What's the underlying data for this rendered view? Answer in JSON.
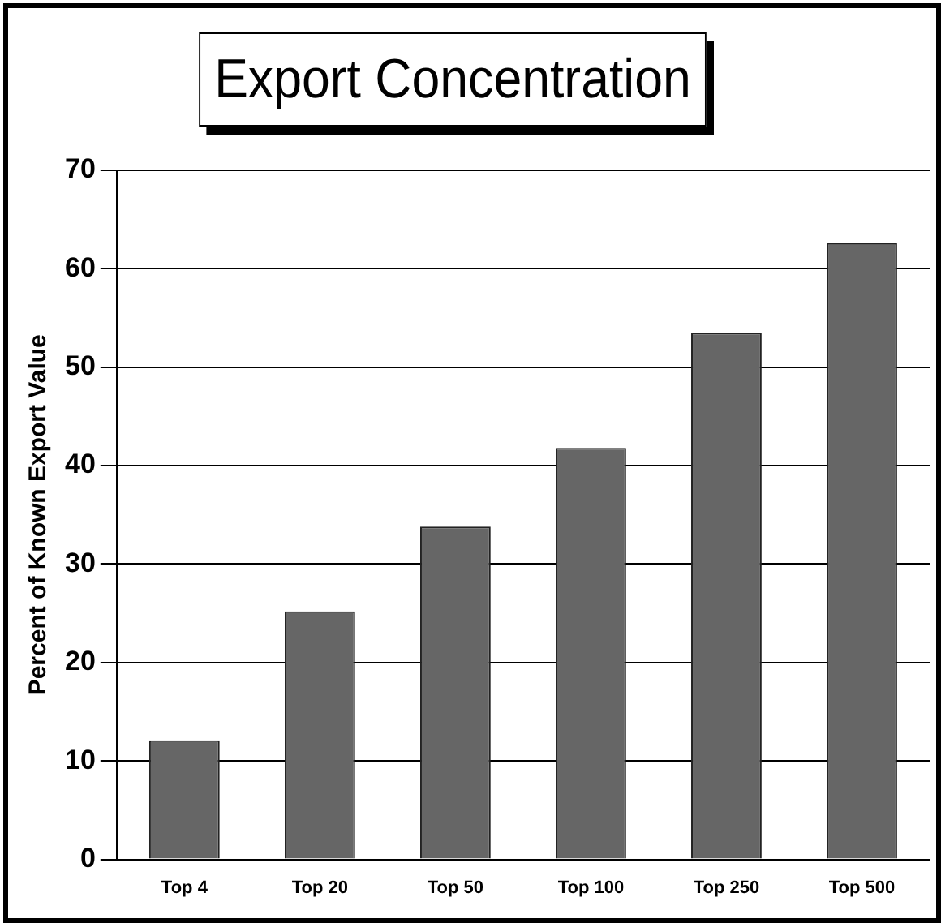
{
  "chart_data": {
    "type": "bar",
    "title": "Export Concentration",
    "ylabel": "Percent of Known Export Value",
    "categories": [
      "Top 4",
      "Top 20",
      "Top 50",
      "Top 100",
      "Top 250",
      "Top 500"
    ],
    "values": [
      12.1,
      25.2,
      33.8,
      41.8,
      53.5,
      62.6
    ],
    "color": "#666666",
    "ylim": [
      0,
      70
    ],
    "yticks": [
      0,
      10,
      20,
      30,
      40,
      50,
      60,
      70
    ],
    "grid": "y",
    "legend": false
  }
}
